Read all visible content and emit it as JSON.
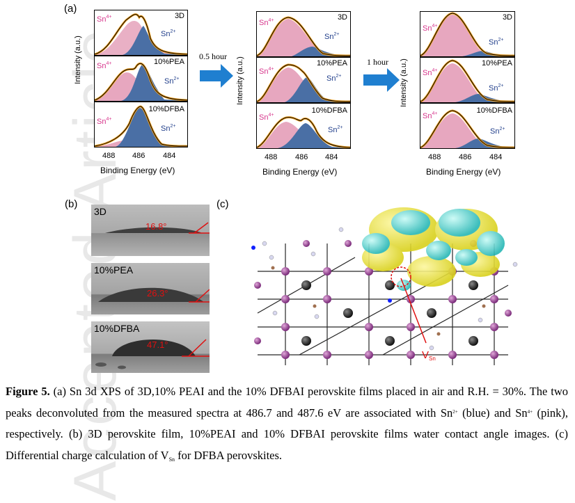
{
  "labels": {
    "a": "(a)",
    "b": "(b)",
    "c": "(c)"
  },
  "xps": {
    "ylabel": "Intensity (a.u.)",
    "xlabel": "Binding Energy (eV)",
    "xticks": [
      "488",
      "486",
      "484"
    ],
    "sn4": "Sn",
    "sn4_sup": "4+",
    "sn2": "Sn",
    "sn2_sup": "2+",
    "samples": [
      "3D",
      "10%PEA",
      "10%DFBA"
    ],
    "arrows": [
      "0.5 hour",
      "1 hour"
    ]
  },
  "contact": {
    "items": [
      {
        "label": "3D",
        "angle": "16.8°"
      },
      {
        "label": "10%PEA",
        "angle": "26.3°"
      },
      {
        "label": "10%DFBA",
        "angle": "47.1°"
      }
    ]
  },
  "structure": {
    "vsn": "V",
    "vsn_sub": "Sn"
  },
  "caption": {
    "bold": "Figure 5.",
    "t1": " (a) Sn 3d XPS of 3D,10% PEAI and the 10% DFBAI perovskite films placed in air and R.H. = 30%. The two peaks deconvoluted from the measured spectra at 486.7 and 487.6 eV are associated with Sn",
    "s1": "2+",
    "t2": " (blue) and Sn",
    "s2": "4+",
    "t3": " (pink), respectively. (b) 3D perovskite film, 10%PEAI and 10% DFBAI perovskite films water contact angle images. (c) Differential charge calculation of V",
    "sub": "Sn",
    "t4": " for DFBA perovskites."
  },
  "watermark": "Accepted Article",
  "colors": {
    "pink": "#e7a7bf",
    "blue": "#4a6fa5",
    "orange": "#f0a020",
    "sn4": "#d6338a",
    "sn2": "#1f3d8a"
  }
}
